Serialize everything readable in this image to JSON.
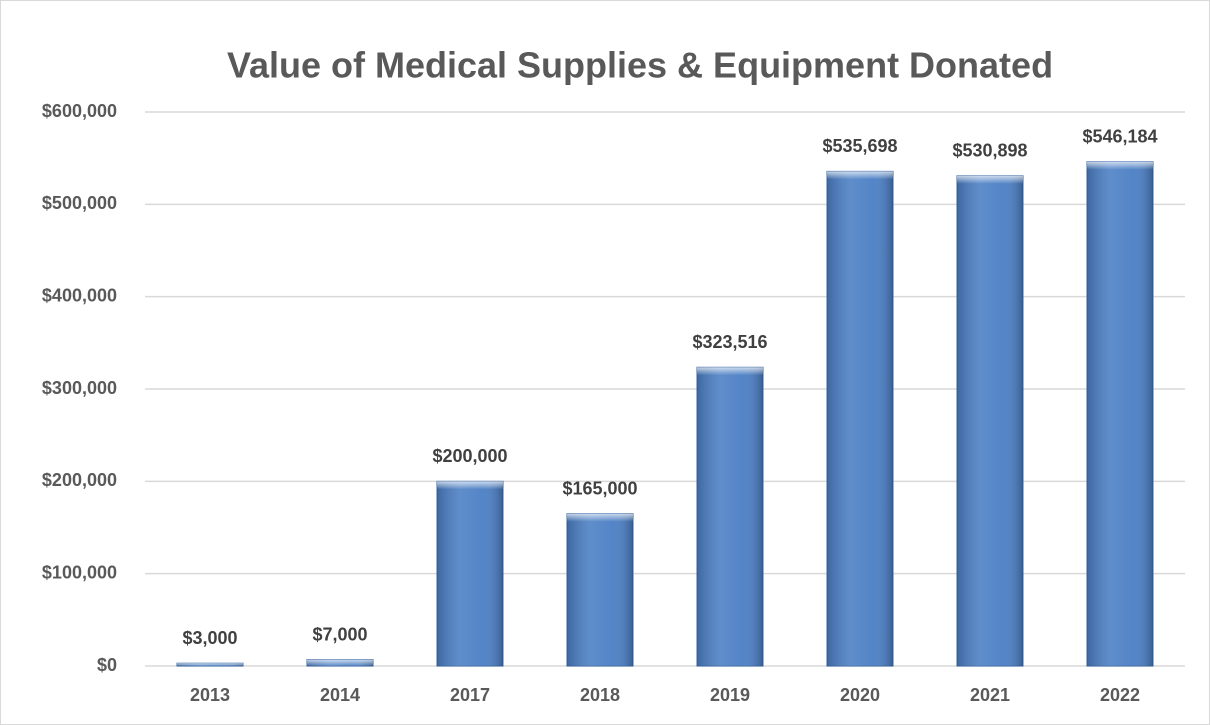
{
  "chart_data": {
    "type": "bar",
    "title": "Value of Medical Supplies & Equipment Donated",
    "categories": [
      "2013",
      "2014",
      "2017",
      "2018",
      "2019",
      "2020",
      "2021",
      "2022"
    ],
    "values": [
      3000,
      7000,
      200000,
      165000,
      323516,
      535698,
      530898,
      546184
    ],
    "value_labels": [
      "$3,000",
      "$7,000",
      "$200,000",
      "$165,000",
      "$323,516",
      "$535,698",
      "$530,898",
      "$546,184"
    ],
    "color": "#4a7ec4",
    "ylim": [
      0,
      600000
    ],
    "yticks": [
      {
        "value": 0,
        "label": "$0"
      },
      {
        "value": 100000,
        "label": "$100,000"
      },
      {
        "value": 200000,
        "label": "$200,000"
      },
      {
        "value": 300000,
        "label": "$300,000"
      },
      {
        "value": 400000,
        "label": "$400,000"
      },
      {
        "value": 500000,
        "label": "$500,000"
      },
      {
        "value": 600000,
        "label": "$600,000"
      }
    ],
    "grid": true
  }
}
